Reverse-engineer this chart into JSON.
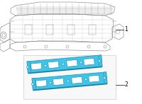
{
  "bg_color": "#ffffff",
  "line_color": "#aaaaaa",
  "line_color_dark": "#888888",
  "part2_fill": "#40c4e8",
  "part2_stroke": "#2299bb",
  "part2_dark": "#1a7a99",
  "box2_bg": "#f8f8f8",
  "box2_edge": "#cccccc",
  "label1": "1",
  "label2": "2",
  "figsize": [
    2.0,
    1.47
  ],
  "dpi": 100
}
